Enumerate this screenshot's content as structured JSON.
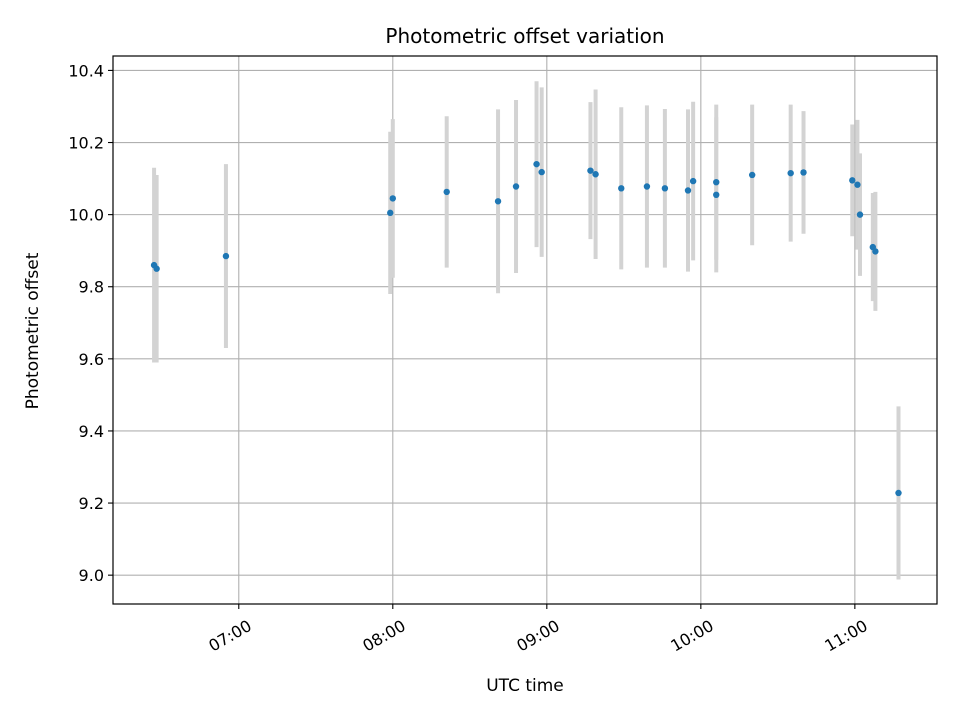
{
  "chart_data": {
    "type": "scatter",
    "title": "Photometric offset variation",
    "xlabel": "UTC time",
    "ylabel": "Photometric offset",
    "x_is_time": true,
    "x_ticks": [
      "07:00",
      "08:00",
      "09:00",
      "10:00",
      "11:00"
    ],
    "y_ticks": [
      "9.0",
      "9.2",
      "9.4",
      "9.6",
      "9.8",
      "10.0",
      "10.2",
      "10.4"
    ],
    "xlim": [
      "06:11",
      "11:32"
    ],
    "ylim": [
      8.92,
      10.44
    ],
    "grid": true,
    "colors": {
      "point": "#1f77b4",
      "errorbar": "#d3d3d3",
      "grid": "#b0b0b0",
      "axes": "#000000"
    },
    "series": [
      {
        "points": [
          {
            "x": "06:27",
            "y": 9.86,
            "err": 0.27
          },
          {
            "x": "06:28",
            "y": 9.85,
            "err": 0.26
          },
          {
            "x": "06:55",
            "y": 9.885,
            "err": 0.255
          },
          {
            "x": "07:59",
            "y": 10.005,
            "err": 0.225
          },
          {
            "x": "08:00",
            "y": 10.045,
            "err": 0.22
          },
          {
            "x": "08:21",
            "y": 10.063,
            "err": 0.21
          },
          {
            "x": "08:41",
            "y": 10.037,
            "err": 0.255
          },
          {
            "x": "08:48",
            "y": 10.078,
            "err": 0.24
          },
          {
            "x": "08:56",
            "y": 10.14,
            "err": 0.23
          },
          {
            "x": "08:58",
            "y": 10.118,
            "err": 0.235
          },
          {
            "x": "09:17",
            "y": 10.122,
            "err": 0.19
          },
          {
            "x": "09:19",
            "y": 10.112,
            "err": 0.235
          },
          {
            "x": "09:29",
            "y": 10.073,
            "err": 0.225
          },
          {
            "x": "09:39",
            "y": 10.078,
            "err": 0.225
          },
          {
            "x": "09:46",
            "y": 10.073,
            "err": 0.22
          },
          {
            "x": "09:55",
            "y": 10.067,
            "err": 0.225
          },
          {
            "x": "09:57",
            "y": 10.093,
            "err": 0.22
          },
          {
            "x": "10:06",
            "y": 10.055,
            "err": 0.215
          },
          {
            "x": "10:06",
            "y": 10.09,
            "err": 0.215
          },
          {
            "x": "10:20",
            "y": 10.11,
            "err": 0.195
          },
          {
            "x": "10:35",
            "y": 10.115,
            "err": 0.19
          },
          {
            "x": "10:40",
            "y": 10.117,
            "err": 0.17
          },
          {
            "x": "10:59",
            "y": 10.095,
            "err": 0.155
          },
          {
            "x": "11:01",
            "y": 10.083,
            "err": 0.18
          },
          {
            "x": "11:02",
            "y": 10.0,
            "err": 0.17
          },
          {
            "x": "11:07",
            "y": 9.91,
            "err": 0.15
          },
          {
            "x": "11:08",
            "y": 9.898,
            "err": 0.165
          },
          {
            "x": "11:17",
            "y": 9.228,
            "err": 0.24
          }
        ]
      }
    ]
  }
}
